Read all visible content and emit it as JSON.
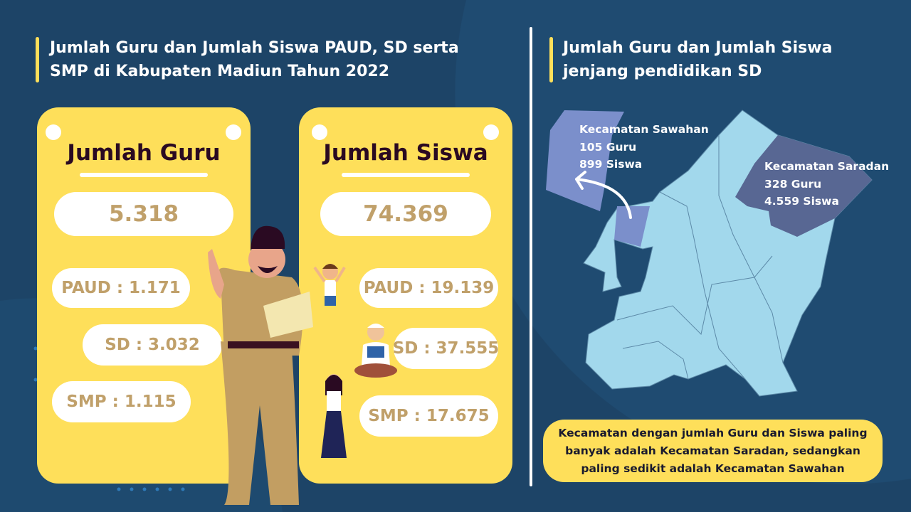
{
  "colors": {
    "background": "#1d4467",
    "card": "#fedf5a",
    "value_text": "#c0a06a",
    "map_base": "#a2d8ec",
    "sawahan": "#7b8fcb",
    "saradan": "#586793"
  },
  "left": {
    "title_line1": "Jumlah Guru dan Jumlah Siswa PAUD, SD serta",
    "title_line2": "SMP di Kabupaten Madiun Tahun 2022",
    "guru": {
      "title": "Jumlah Guru",
      "total": "5.318",
      "paud": "PAUD : 1.171",
      "sd": "SD : 3.032",
      "smp": "SMP : 1.115"
    },
    "siswa": {
      "title": "Jumlah Siswa",
      "total": "74.369",
      "paud": "PAUD : 19.139",
      "sd": "SD : 37.555",
      "smp": "SMP : 17.675"
    }
  },
  "right": {
    "title_line1": "Jumlah Guru dan Jumlah Siswa",
    "title_line2": "jenjang pendidikan SD",
    "sawahan": {
      "name": "Kecamatan Sawahan",
      "guru": "105 Guru",
      "siswa": "899 Siswa"
    },
    "saradan": {
      "name": "Kecamatan Saradan",
      "guru": "328 Guru",
      "siswa": "4.559 Siswa"
    },
    "note": "Kecamatan dengan jumlah Guru dan Siswa paling banyak adalah Kecamatan Saradan, sedangkan paling sedikit adalah Kecamatan Sawahan"
  }
}
